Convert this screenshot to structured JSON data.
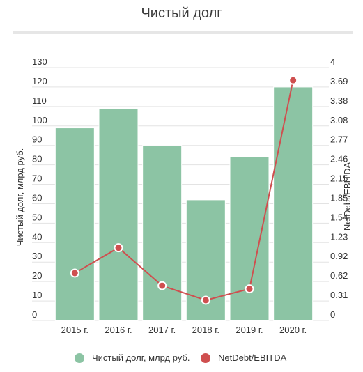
{
  "title": "Чистый долг",
  "chart_data": {
    "type": "bar",
    "title": "Чистый долг",
    "categories": [
      "2015 г.",
      "2016 г.",
      "2017 г.",
      "2018 г.",
      "2019 г.",
      "2020 г."
    ],
    "series": [
      {
        "name": "Чистый долг, млрд руб.",
        "type": "bar",
        "axis": "left",
        "values": [
          99,
          109,
          90,
          62,
          84,
          120
        ],
        "color": "#8cc4a4"
      },
      {
        "name": "NetDebt/EBITDA",
        "type": "line",
        "axis": "right",
        "values": [
          0.75,
          1.15,
          0.55,
          0.32,
          0.5,
          3.8
        ],
        "color": "#cf4f4f"
      }
    ],
    "y_left": {
      "label": "Чистый долг, млрд руб.",
      "range": [
        0,
        130
      ],
      "ticks": [
        "0",
        "10",
        "20",
        "30",
        "40",
        "50",
        "60",
        "70",
        "80",
        "90",
        "100",
        "110",
        "120",
        "130"
      ]
    },
    "y_right": {
      "label": "NetDebt/EBITDA",
      "range": [
        0,
        4
      ],
      "ticks": [
        "0",
        "0.31",
        "0.62",
        "0.92",
        "1.23",
        "1.54",
        "1.85",
        "2.15",
        "2.46",
        "2.77",
        "3.08",
        "3.38",
        "3.69",
        "4"
      ]
    },
    "grid": true,
    "legend_position": "bottom"
  }
}
